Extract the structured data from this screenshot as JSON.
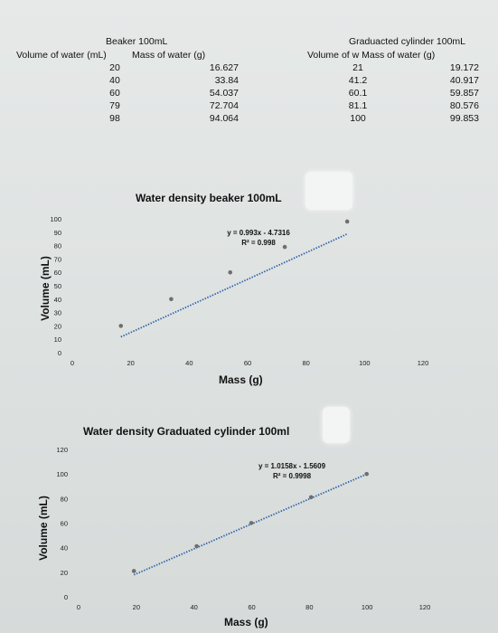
{
  "beaker_table": {
    "title": "Beaker 100mL",
    "col1_header": "Volume of water (mL)",
    "col2_header": "Mass of water (g)",
    "rows": [
      {
        "volume": "20",
        "mass": "16.627"
      },
      {
        "volume": "40",
        "mass": "33.84"
      },
      {
        "volume": "60",
        "mass": "54.037"
      },
      {
        "volume": "79",
        "mass": "72.704"
      },
      {
        "volume": "98",
        "mass": "94.064"
      }
    ]
  },
  "cylinder_table": {
    "title": "Graduacted cylinder 100mL",
    "header": "Volume of w Mass of water (g)",
    "rows": [
      {
        "volume": "21",
        "mass": "19.172"
      },
      {
        "volume": "41.2",
        "mass": "40.917"
      },
      {
        "volume": "60.1",
        "mass": "59.857"
      },
      {
        "volume": "81.1",
        "mass": "80.576"
      },
      {
        "volume": "100",
        "mass": "99.853"
      }
    ]
  },
  "chart_data": [
    {
      "type": "scatter",
      "title": "Water density beaker 100mL",
      "xlabel": "Mass (g)",
      "ylabel": "Volume (mL)",
      "xlim": [
        0,
        120
      ],
      "ylim": [
        0,
        100
      ],
      "xticks": [
        0,
        20,
        40,
        60,
        80,
        100,
        120
      ],
      "yticks": [
        0,
        10,
        20,
        30,
        40,
        50,
        60,
        70,
        80,
        90,
        100
      ],
      "series": [
        {
          "x": [
            16.627,
            33.84,
            54.037,
            72.704,
            94.064
          ],
          "y": [
            20,
            40,
            60,
            79,
            98
          ]
        }
      ],
      "trendline": {
        "style": "dotted",
        "equation": "y = 0.993x - 4.7316",
        "r2": "R² = 0.998",
        "slope": 0.993,
        "intercept": -4.7316
      },
      "grid": false,
      "point_color": "#6e6e6e",
      "line_color": "#2a5fa8"
    },
    {
      "type": "scatter",
      "title": "Water density Graduated cylinder 100ml",
      "xlabel": "Mass (g)",
      "ylabel": "Volume (mL)",
      "xlim": [
        0,
        120
      ],
      "ylim": [
        0,
        120
      ],
      "xticks": [
        0,
        20,
        40,
        60,
        80,
        100,
        120
      ],
      "yticks": [
        0,
        20,
        40,
        60,
        80,
        100,
        120
      ],
      "series": [
        {
          "x": [
            19.172,
            40.917,
            59.857,
            80.576,
            99.853
          ],
          "y": [
            21,
            41.2,
            60.1,
            81.1,
            100
          ]
        }
      ],
      "trendline": {
        "style": "dotted",
        "equation": "y = 1.0158x - 1.5609",
        "r2": "R² = 0.9998",
        "slope": 1.0158,
        "intercept": -1.5609
      },
      "grid": false,
      "point_color": "#6e6e6e",
      "line_color": "#2a5fa8"
    }
  ]
}
